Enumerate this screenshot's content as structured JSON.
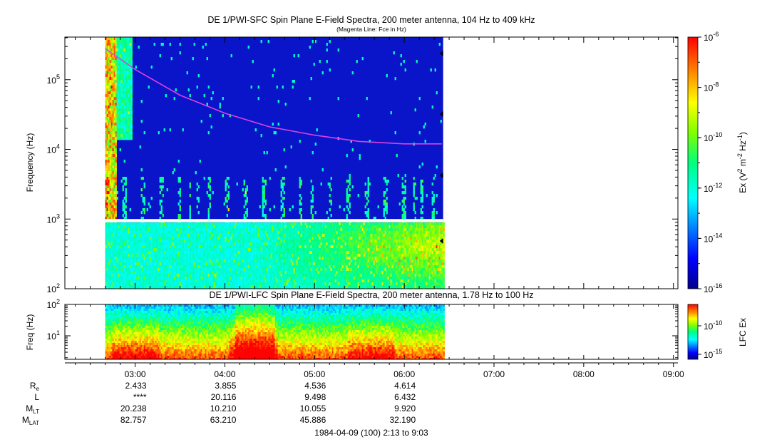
{
  "chart_data": [
    {
      "type": "heatmap",
      "title": "DE 1/PWI-SFC  Spin Plane E-Field Spectra, 200 meter antenna, 104 Hz to 409 kHz",
      "subtitle": "(Magenta Line: Fce in Hz)",
      "ylabel": "Frequency (Hz)",
      "yscale": "log",
      "ylim": [
        100,
        409000
      ],
      "yticks": [
        "10^2",
        "10^3",
        "10^4",
        "10^5"
      ],
      "xlim": [
        "02:13",
        "09:03"
      ],
      "data_end": "06:26",
      "colorbar": {
        "label": "Ex (V^2 m^-2 Hz^-1)",
        "scale": "log",
        "range": [
          1e-16,
          1e-06
        ],
        "ticks": [
          "10^-6",
          "10^-8",
          "10^-10",
          "10^-12",
          "10^-14",
          "10^-16"
        ]
      },
      "fce_line": {
        "color": "#e040e0",
        "points": [
          {
            "t": "02:40",
            "f": 280000
          },
          {
            "t": "03:00",
            "f": 140000
          },
          {
            "t": "03:30",
            "f": 60000
          },
          {
            "t": "04:00",
            "f": 33000
          },
          {
            "t": "04:30",
            "f": 21000
          },
          {
            "t": "05:00",
            "f": 16000
          },
          {
            "t": "05:30",
            "f": 13000
          },
          {
            "t": "06:00",
            "f": 12000
          },
          {
            "t": "06:25",
            "f": 12000
          }
        ]
      }
    },
    {
      "type": "heatmap",
      "title": "DE 1/PWI-LFC  Spin Plane E-Field Spectra, 200 meter antenna, 1.78 Hz to 100 Hz",
      "ylabel": "Freq (Hz)",
      "yscale": "log",
      "ylim": [
        1.78,
        100
      ],
      "yticks": [
        "10^1",
        "10^2"
      ],
      "colorbar": {
        "label": "LFC Ex",
        "scale": "log",
        "ticks": [
          "10^-10",
          "10^-15"
        ]
      }
    }
  ],
  "time_axis": {
    "ticks": [
      "03:00",
      "04:00",
      "05:00",
      "06:00",
      "07:00",
      "08:00",
      "09:00"
    ]
  },
  "ephemeris": {
    "rows": [
      {
        "label": "R",
        "sub": "e",
        "values": [
          "2.433",
          "3.855",
          "4.536",
          "4.614"
        ]
      },
      {
        "label": "L",
        "sub": "",
        "values": [
          "****",
          "20.116",
          "9.498",
          "6.432"
        ]
      },
      {
        "label": "M",
        "sub": "LT",
        "values": [
          "20.238",
          "10.210",
          "10.055",
          "9.920"
        ]
      },
      {
        "label": "M",
        "sub": "LAT",
        "values": [
          "82.757",
          "63.210",
          "45.886",
          "32.190"
        ]
      }
    ]
  },
  "footer": "1984-04-09 (100) 2:13 to 9:03",
  "colors": {
    "fce_line": "#e040e0",
    "background_spectrum": "#1020c8"
  }
}
